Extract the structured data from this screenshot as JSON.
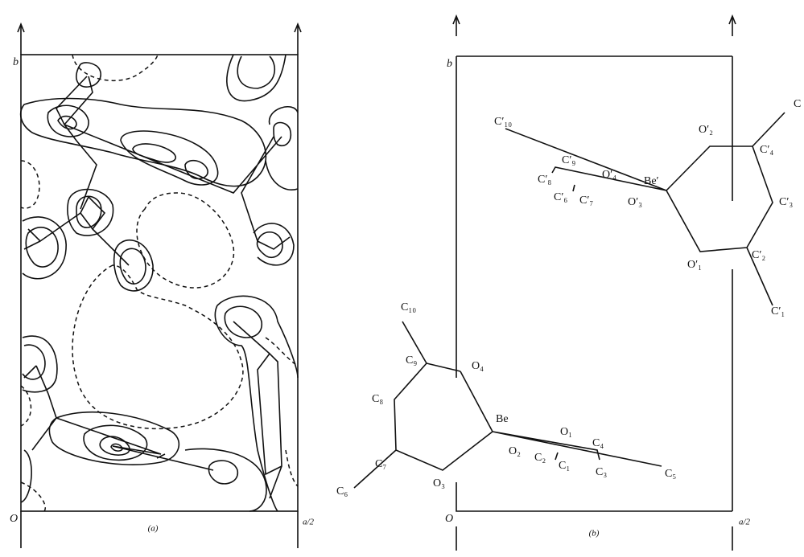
{
  "panel_a": {
    "axis_b": "b",
    "origin": "O",
    "axis_a": "a/2",
    "caption": "(a)"
  },
  "panel_b": {
    "axis_b": "b",
    "origin": "O",
    "axis_a": "a/2",
    "caption": "(b)",
    "atoms": [
      "Be",
      "O₁",
      "O₂",
      "O₃",
      "O₄",
      "C₁",
      "C₂",
      "C₃",
      "C₄",
      "C₅",
      "C₆",
      "C₇",
      "C₈",
      "C₉",
      "C₁₀",
      "Be′",
      "O′₁",
      "O′₂",
      "O′₃",
      "O′₄",
      "C′₁",
      "C′₂",
      "C′₃",
      "C′₄",
      "C",
      "C′₆",
      "C′₇",
      "C′₈",
      "C′₉",
      "C′₁₀"
    ]
  }
}
